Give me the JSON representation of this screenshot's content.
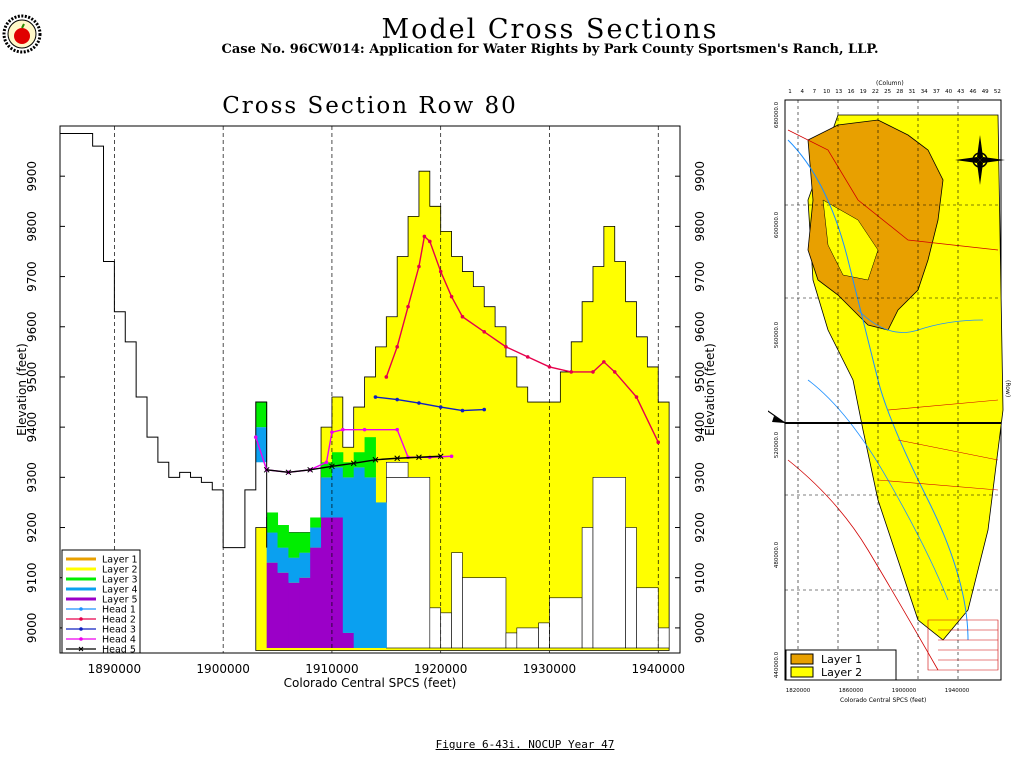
{
  "header": {
    "title": "Model Cross Sections",
    "subtitle": "Case No. 96CW014: Application for Water Rights by Park County Sportsmen's Ranch, LLP."
  },
  "caption": "Figure 6-43i.  NOCUP Year 47",
  "colors": {
    "layer1": "#e8a000",
    "layer2": "#ffff00",
    "layer3": "#00ee00",
    "layer4": "#0aa0f0",
    "layer5": "#9b00c8",
    "head1": "#1e90ff",
    "head2": "#e6004c",
    "head3": "#1020c0",
    "head4": "#ee00ee",
    "head5": "#000000"
  },
  "chart_data": {
    "type": "area",
    "title": "Cross Section Row 80",
    "xlabel": "Colorado Central SPCS (feet)",
    "ylabel": "Elevation (feet)",
    "xlim": [
      1885000,
      1942000
    ],
    "ylim": [
      8950,
      10000
    ],
    "xticks": [
      "1890000",
      "1900000",
      "1910000",
      "1920000",
      "1930000",
      "1940000"
    ],
    "yticks": [
      "9000",
      "9100",
      "9200",
      "9300",
      "9400",
      "9500",
      "9600",
      "9700",
      "9800",
      "9900"
    ],
    "vertical_grid_x": [
      1890000,
      1900000,
      1910000,
      1920000,
      1930000,
      1940000
    ],
    "legend": [
      "Layer 1",
      "Layer 2",
      "Layer 3",
      "Layer 4",
      "Layer 5",
      "Head 1",
      "Head 2",
      "Head 3",
      "Head 4",
      "Head 5"
    ],
    "legend_position": "bottom-left",
    "surface_profile": [
      [
        1884000,
        9985
      ],
      [
        1888000,
        9985
      ],
      [
        1888000,
        9960
      ],
      [
        1889000,
        9960
      ],
      [
        1889000,
        9730
      ],
      [
        1890000,
        9730
      ],
      [
        1890000,
        9630
      ],
      [
        1891000,
        9630
      ],
      [
        1891000,
        9570
      ],
      [
        1892000,
        9570
      ],
      [
        1892000,
        9460
      ],
      [
        1893000,
        9460
      ],
      [
        1893000,
        9380
      ],
      [
        1894000,
        9380
      ],
      [
        1894000,
        9330
      ],
      [
        1895000,
        9330
      ],
      [
        1895000,
        9300
      ],
      [
        1896000,
        9300
      ],
      [
        1896000,
        9310
      ],
      [
        1897000,
        9310
      ],
      [
        1897000,
        9300
      ],
      [
        1898000,
        9300
      ],
      [
        1898000,
        9290
      ],
      [
        1899000,
        9290
      ],
      [
        1899000,
        9275
      ],
      [
        1900000,
        9275
      ],
      [
        1900000,
        9160
      ],
      [
        1902000,
        9160
      ],
      [
        1902000,
        9275
      ],
      [
        1903000,
        9275
      ],
      [
        1903000,
        9450
      ],
      [
        1904000,
        9450
      ],
      [
        1904000,
        9160
      ]
    ],
    "layer2_profile": [
      [
        1903000,
        9160
      ],
      [
        1903000,
        9200
      ],
      [
        1904000,
        9200
      ],
      [
        1904000,
        9220
      ],
      [
        1905000,
        9220
      ],
      [
        1905000,
        9190
      ],
      [
        1909000,
        9190
      ],
      [
        1909000,
        9400
      ],
      [
        1910000,
        9400
      ],
      [
        1910000,
        9460
      ],
      [
        1911000,
        9460
      ],
      [
        1911000,
        9360
      ],
      [
        1912000,
        9360
      ],
      [
        1912000,
        9440
      ],
      [
        1913000,
        9440
      ],
      [
        1913000,
        9500
      ],
      [
        1914000,
        9500
      ],
      [
        1914000,
        9560
      ],
      [
        1915000,
        9560
      ],
      [
        1915000,
        9620
      ],
      [
        1916000,
        9620
      ],
      [
        1916000,
        9740
      ],
      [
        1917000,
        9740
      ],
      [
        1917000,
        9820
      ],
      [
        1918000,
        9820
      ],
      [
        1918000,
        9910
      ],
      [
        1919000,
        9910
      ],
      [
        1919000,
        9840
      ],
      [
        1920000,
        9840
      ],
      [
        1920000,
        9790
      ],
      [
        1921000,
        9790
      ],
      [
        1921000,
        9740
      ],
      [
        1922000,
        9740
      ],
      [
        1922000,
        9710
      ],
      [
        1923000,
        9710
      ],
      [
        1923000,
        9680
      ],
      [
        1924000,
        9680
      ],
      [
        1924000,
        9640
      ],
      [
        1925000,
        9640
      ],
      [
        1925000,
        9600
      ],
      [
        1926000,
        9600
      ],
      [
        1926000,
        9540
      ],
      [
        1927000,
        9540
      ],
      [
        1927000,
        9480
      ],
      [
        1928000,
        9480
      ],
      [
        1928000,
        9450
      ],
      [
        1931000,
        9450
      ],
      [
        1931000,
        9510
      ],
      [
        1932000,
        9510
      ],
      [
        1932000,
        9570
      ],
      [
        1933000,
        9570
      ],
      [
        1933000,
        9650
      ],
      [
        1934000,
        9650
      ],
      [
        1934000,
        9720
      ],
      [
        1935000,
        9720
      ],
      [
        1935000,
        9800
      ],
      [
        1936000,
        9800
      ],
      [
        1936000,
        9730
      ],
      [
        1937000,
        9730
      ],
      [
        1937000,
        9650
      ],
      [
        1938000,
        9650
      ],
      [
        1938000,
        9580
      ],
      [
        1939000,
        9580
      ],
      [
        1939000,
        9520
      ],
      [
        1940000,
        9520
      ],
      [
        1940000,
        9450
      ],
      [
        1941000,
        9450
      ],
      [
        1941000,
        8960
      ]
    ],
    "series": [
      {
        "name": "Head 1",
        "x": [
          1903000,
          1904000
        ],
        "y": [
          9380,
          9315
        ]
      },
      {
        "name": "Head 2",
        "x": [
          1915000,
          1916000,
          1917000,
          1918000,
          1918500,
          1919000,
          1920000,
          1921000,
          1922000,
          1924000,
          1926000,
          1928000,
          1930000,
          1932000,
          1934000,
          1935000,
          1936000,
          1938000,
          1940000
        ],
        "y": [
          9500,
          9560,
          9640,
          9720,
          9780,
          9770,
          9710,
          9660,
          9620,
          9590,
          9560,
          9540,
          9520,
          9510,
          9510,
          9530,
          9510,
          9460,
          9370
        ]
      },
      {
        "name": "Head 3",
        "x": [
          1914000,
          1916000,
          1918000,
          1920000,
          1922000,
          1924000
        ],
        "y": [
          9460,
          9455,
          9448,
          9440,
          9433,
          9435
        ]
      },
      {
        "name": "Head 4",
        "x": [
          1903000,
          1904000,
          1906000,
          1908000,
          1909500,
          1910000,
          1911000,
          1913000,
          1916000,
          1917000,
          1919000,
          1921000
        ],
        "y": [
          9380,
          9315,
          9310,
          9315,
          9330,
          9390,
          9395,
          9395,
          9395,
          9340,
          9340,
          9342
        ]
      },
      {
        "name": "Head 5",
        "x": [
          1904000,
          1906000,
          1908000,
          1910000,
          1912000,
          1914000,
          1916000,
          1918000,
          1920000
        ],
        "y": [
          9315,
          9310,
          9315,
          9322,
          9328,
          9335,
          9338,
          9340,
          9342
        ]
      }
    ],
    "columns": [
      {
        "x0": 1904000,
        "x1": 1905000,
        "bands": [
          [
            "layer5",
            8960,
            9130
          ],
          [
            "layer4",
            9130,
            9190
          ],
          [
            "layer3",
            9190,
            9230
          ]
        ]
      },
      {
        "x0": 1905000,
        "x1": 1906000,
        "bands": [
          [
            "layer5",
            8960,
            9110
          ],
          [
            "layer4",
            9110,
            9160
          ],
          [
            "layer3",
            9160,
            9205
          ]
        ]
      },
      {
        "x0": 1906000,
        "x1": 1907000,
        "bands": [
          [
            "layer5",
            8960,
            9090
          ],
          [
            "layer4",
            9090,
            9140
          ],
          [
            "layer3",
            9140,
            9190
          ]
        ]
      },
      {
        "x0": 1907000,
        "x1": 1908000,
        "bands": [
          [
            "layer5",
            8960,
            9100
          ],
          [
            "layer4",
            9100,
            9150
          ],
          [
            "layer3",
            9150,
            9190
          ]
        ]
      },
      {
        "x0": 1908000,
        "x1": 1909000,
        "bands": [
          [
            "layer5",
            8960,
            9160
          ],
          [
            "layer4",
            9160,
            9200
          ],
          [
            "layer3",
            9200,
            9220
          ]
        ]
      },
      {
        "x0": 1909000,
        "x1": 1910000,
        "bands": [
          [
            "layer5",
            8960,
            9220
          ],
          [
            "layer4",
            9220,
            9300
          ],
          [
            "layer3",
            9300,
            9330
          ]
        ]
      },
      {
        "x0": 1910000,
        "x1": 1911000,
        "bands": [
          [
            "layer5",
            8960,
            9220
          ],
          [
            "layer4",
            9220,
            9320
          ],
          [
            "layer3",
            9320,
            9350
          ]
        ]
      },
      {
        "x0": 1911000,
        "x1": 1912000,
        "bands": [
          [
            "layer5",
            8960,
            8990
          ],
          [
            "layer4",
            8990,
            9300
          ],
          [
            "layer3",
            9300,
            9330
          ]
        ]
      },
      {
        "x0": 1912000,
        "x1": 1913000,
        "bands": [
          [
            "layer4",
            8960,
            9320
          ],
          [
            "layer3",
            9320,
            9350
          ]
        ]
      },
      {
        "x0": 1913000,
        "x1": 1914000,
        "bands": [
          [
            "layer4",
            8960,
            9300
          ],
          [
            "layer3",
            9300,
            9380
          ]
        ]
      },
      {
        "x0": 1914000,
        "x1": 1915000,
        "bands": [
          [
            "layer4",
            8960,
            9250
          ]
        ]
      },
      {
        "x0": 1903000,
        "x1": 1904000,
        "bands": [
          [
            "layer4",
            9330,
            9400
          ],
          [
            "layer3",
            9400,
            9450
          ]
        ]
      }
    ]
  },
  "map": {
    "column_label": "(Column)",
    "column_ticks": [
      "1",
      "4",
      "7",
      "10",
      "13",
      "16",
      "19",
      "22",
      "25",
      "28",
      "31",
      "34",
      "37",
      "40",
      "43",
      "46",
      "49",
      "52"
    ],
    "row_label": "(Row)",
    "side_label": "Colorado Central SPCS (feet)",
    "north_ticks": [
      "680000.0",
      "600000.0",
      "560000.0",
      "520000.0",
      "480000.0",
      "440000.0"
    ],
    "east_ticks": [
      "1820000",
      "1860000",
      "1900000",
      "1940000"
    ],
    "legend": [
      "Layer 1",
      "Layer 2"
    ]
  }
}
